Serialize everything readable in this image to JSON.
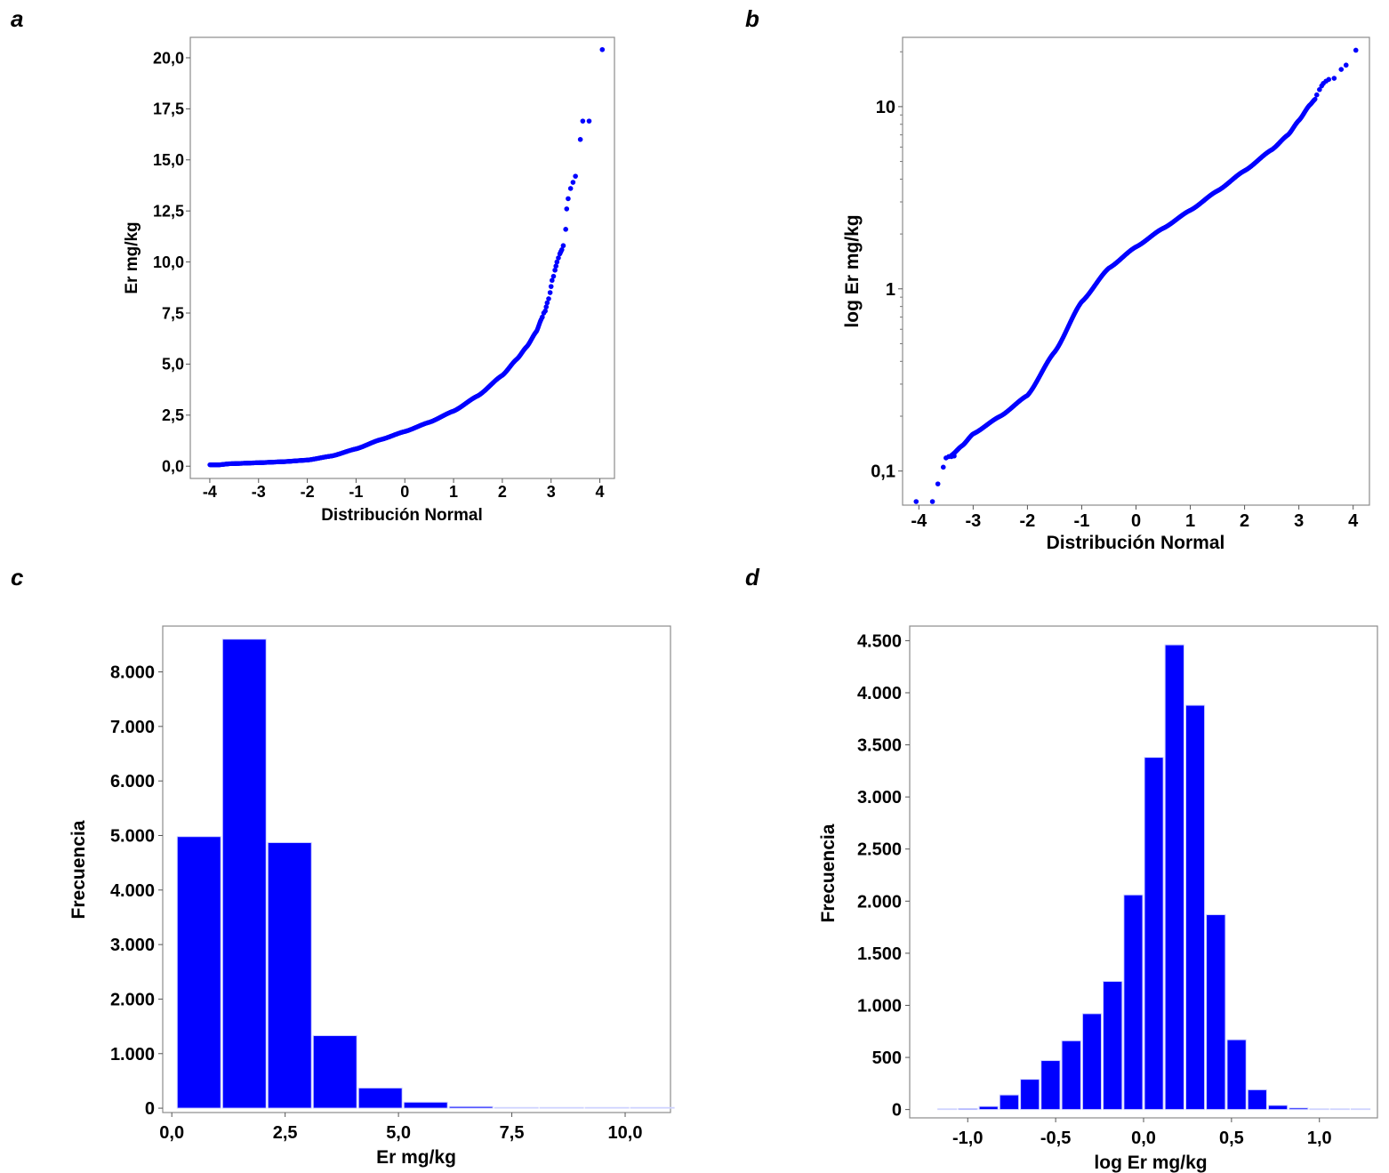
{
  "colors": {
    "marker": "#0000ff",
    "bar": "#0000ff",
    "bar_edge": "#ffffff",
    "frame": "#8c8c8c"
  },
  "chart_data": [
    {
      "panel": "a",
      "type": "scatter",
      "xlabel": "Distribución Normal",
      "ylabel": "Er mg/kg",
      "xlim": [
        -4.4,
        4.3
      ],
      "ylim": [
        -0.6,
        21.0
      ],
      "xticks": [
        -4,
        -3,
        -2,
        -1,
        0,
        1,
        2,
        3,
        4
      ],
      "xtick_labels": [
        "-4",
        "-3",
        "-2",
        "-1",
        "0",
        "1",
        "2",
        "3",
        "4"
      ],
      "yticks": [
        0,
        2.5,
        5,
        7.5,
        10,
        12.5,
        15,
        17.5,
        20
      ],
      "ytick_labels": [
        "0,0",
        "2,5",
        "5,0",
        "7,5",
        "10,0",
        "12,5",
        "15,0",
        "17,5",
        "20,0"
      ],
      "curve": {
        "x": [
          -4.0,
          -3.8,
          -3.6,
          -3.0,
          -2.5,
          -2.0,
          -1.5,
          -1.0,
          -0.5,
          0.0,
          0.5,
          1.0,
          1.5,
          2.0,
          2.3,
          2.5,
          2.7,
          2.8
        ],
        "y": [
          0.07,
          0.07,
          0.12,
          0.17,
          0.22,
          0.3,
          0.5,
          0.85,
          1.3,
          1.7,
          2.15,
          2.7,
          3.45,
          4.45,
          5.25,
          5.85,
          6.6,
          7.2
        ]
      },
      "tail_points": {
        "x": [
          2.82,
          2.85,
          2.88,
          2.9,
          2.92,
          2.95,
          2.98,
          3.0,
          3.02,
          3.05,
          3.08,
          3.1,
          3.12,
          3.15,
          3.18,
          3.2,
          3.22,
          3.25,
          3.3,
          3.32,
          3.35,
          3.4,
          3.45,
          3.5,
          3.6,
          3.65,
          3.78,
          4.05
        ],
        "y": [
          7.3,
          7.5,
          7.6,
          7.8,
          8.0,
          8.2,
          8.5,
          8.8,
          9.1,
          9.3,
          9.6,
          9.8,
          10.0,
          10.2,
          10.4,
          10.5,
          10.6,
          10.8,
          11.6,
          12.6,
          13.1,
          13.6,
          13.9,
          14.2,
          16.0,
          16.9,
          16.9,
          20.4
        ]
      }
    },
    {
      "panel": "b",
      "type": "scatter",
      "xlabel": "Distribución Normal",
      "ylabel": "log Er mg/kg",
      "scale_y": "log",
      "xlim": [
        -4.3,
        4.3
      ],
      "ylim": [
        0.065,
        24
      ],
      "xticks": [
        -4,
        -3,
        -2,
        -1,
        0,
        1,
        2,
        3,
        4
      ],
      "xtick_labels": [
        "-4",
        "-3",
        "-2",
        "-1",
        "0",
        "1",
        "2",
        "3",
        "4"
      ],
      "yticks": [
        0.1,
        1,
        10
      ],
      "ytick_labels": [
        "0,1",
        "1",
        "10"
      ],
      "curve": {
        "x": [
          -3.4,
          -3.2,
          -3.0,
          -2.5,
          -2.0,
          -1.5,
          -1.0,
          -0.5,
          0.0,
          0.5,
          1.0,
          1.5,
          2.0,
          2.5,
          2.8,
          3.0,
          3.2,
          3.3
        ],
        "y": [
          0.122,
          0.138,
          0.16,
          0.2,
          0.26,
          0.45,
          0.85,
          1.3,
          1.7,
          2.15,
          2.7,
          3.45,
          4.45,
          5.8,
          7.0,
          8.4,
          10.2,
          11.0
        ]
      },
      "tail_points": {
        "x": [
          -4.05,
          -3.75,
          -3.65,
          -3.55,
          -3.5,
          -3.45,
          -3.4,
          -3.35,
          3.33,
          3.38,
          3.42,
          3.45,
          3.5,
          3.55,
          3.65,
          3.78,
          3.87,
          4.05
        ],
        "y": [
          0.068,
          0.068,
          0.085,
          0.105,
          0.118,
          0.12,
          0.12,
          0.121,
          11.6,
          12.4,
          13.0,
          13.4,
          13.8,
          14.1,
          14.3,
          16.0,
          16.9,
          20.4
        ]
      }
    },
    {
      "panel": "c",
      "type": "bar",
      "xlabel": "Er mg/kg",
      "ylabel": "Frecuencia",
      "xlim": [
        -0.2,
        11.0
      ],
      "ylim": [
        -80,
        8840
      ],
      "xticks": [
        0,
        2.5,
        5,
        7.5,
        10
      ],
      "xtick_labels": [
        "0,0",
        "2,5",
        "5,0",
        "7,5",
        "10,0"
      ],
      "yticks": [
        0,
        1000,
        2000,
        3000,
        4000,
        5000,
        6000,
        7000,
        8000
      ],
      "ytick_labels": [
        "0",
        "1.000",
        "2.000",
        "3.000",
        "4.000",
        "5.000",
        "6.000",
        "7.000",
        "8.000"
      ],
      "bin_edges": [
        0.1,
        1.1,
        2.1,
        3.1,
        4.1,
        5.1,
        6.1,
        7.1,
        8.1,
        9.1,
        10.1,
        11.1
      ],
      "values": [
        4980,
        8600,
        4870,
        1330,
        370,
        110,
        30,
        10,
        5,
        3,
        2
      ]
    },
    {
      "panel": "d",
      "type": "bar",
      "xlabel": "log Er mg/kg",
      "ylabel": "Frecuencia",
      "xlim": [
        -1.33,
        1.33
      ],
      "ylim": [
        -80,
        4640
      ],
      "xticks": [
        -1.0,
        -0.5,
        0.0,
        0.5,
        1.0
      ],
      "xtick_labels": [
        "-1,0",
        "-0,5",
        "0,0",
        "0,5",
        "1,0"
      ],
      "yticks": [
        0,
        500,
        1000,
        1500,
        2000,
        2500,
        3000,
        3500,
        4000,
        4500
      ],
      "ytick_labels": [
        "0",
        "500",
        "1.000",
        "1.500",
        "2.000",
        "2.500",
        "3.000",
        "3.500",
        "4.000",
        "4.500"
      ],
      "bin_edges": [
        -1.175,
        -1.058,
        -0.94,
        -0.823,
        -0.705,
        -0.588,
        -0.47,
        -0.352,
        -0.235,
        -0.117,
        0.0,
        0.117,
        0.235,
        0.352,
        0.47,
        0.588,
        0.705,
        0.823,
        0.94,
        1.058,
        1.175,
        1.293
      ],
      "values": [
        5,
        10,
        30,
        140,
        290,
        470,
        660,
        920,
        1230,
        2060,
        3380,
        4460,
        3880,
        1870,
        670,
        190,
        40,
        15,
        5,
        3,
        2
      ]
    }
  ]
}
